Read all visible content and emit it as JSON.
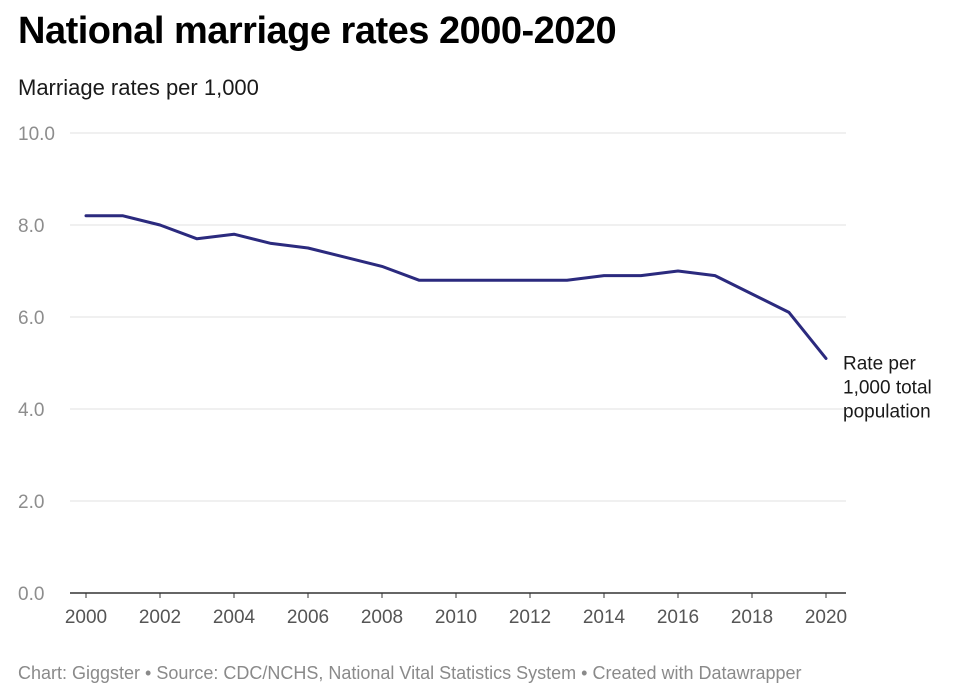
{
  "title": "National marriage rates 2000-2020",
  "subtitle": "Marriage rates per 1,000",
  "footer": "Chart: Giggster • Source: CDC/NCHS, National Vital Statistics System • Created with Datawrapper",
  "chart_data": {
    "type": "line",
    "title": "National marriage rates 2000-2020",
    "subtitle": "Marriage rates per 1,000",
    "xlabel": "",
    "ylabel": "",
    "x": [
      2000,
      2001,
      2002,
      2003,
      2004,
      2005,
      2006,
      2007,
      2008,
      2009,
      2010,
      2011,
      2012,
      2013,
      2014,
      2015,
      2016,
      2017,
      2018,
      2019,
      2020
    ],
    "series": [
      {
        "name": "",
        "values": [
          8.2,
          8.2,
          8.0,
          7.7,
          7.8,
          7.6,
          7.5,
          7.3,
          7.1,
          6.8,
          6.8,
          6.8,
          6.8,
          6.8,
          6.9,
          6.9,
          7.0,
          6.9,
          6.5,
          6.1,
          5.1
        ],
        "color": "#2b2a7e"
      }
    ],
    "ylim": [
      0,
      10
    ],
    "xlim": [
      2000,
      2020
    ],
    "y_ticks": [
      "0.0",
      "2.0",
      "4.0",
      "6.0",
      "8.0",
      "10.0"
    ],
    "x_ticks": [
      "2000",
      "2002",
      "2004",
      "2006",
      "2008",
      "2010",
      "2012",
      "2014",
      "2016",
      "2018",
      "2020"
    ],
    "annotation": [
      "Rate per",
      "1,000 total",
      "population"
    ],
    "grid": true
  },
  "colors": {
    "line": "#2b2a7e",
    "grid": "#e2e2e2",
    "axis": "#333333"
  }
}
